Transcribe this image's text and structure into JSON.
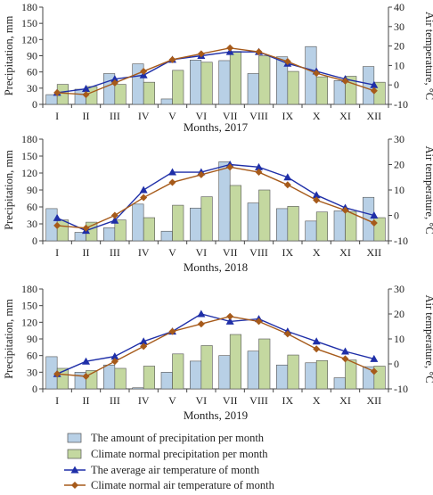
{
  "chart_data": [
    {
      "type": "bar",
      "xlabel": "Months, 2017",
      "ylabel_left": "Precipitation, mm",
      "ylabel_right": "Air temperature, °C",
      "ylim_left": [
        0,
        180
      ],
      "yticks_left": [
        "0",
        "30",
        "60",
        "90",
        "120",
        "150",
        "180"
      ],
      "ylim_right": [
        -10,
        40
      ],
      "yticks_right": [
        "-10",
        "0",
        "10",
        "20",
        "30",
        "40"
      ],
      "categories": [
        "I",
        "II",
        "III",
        "IV",
        "V",
        "VI",
        "VII",
        "VIII",
        "IX",
        "X",
        "XI",
        "XII"
      ],
      "series": [
        {
          "name": "The amount of precipitation per month",
          "kind": "bar",
          "color": "#b8d0e6",
          "values": [
            18,
            28,
            57,
            75,
            10,
            82,
            81,
            57,
            88,
            107,
            44,
            70
          ]
        },
        {
          "name": "Climate normal precipitation per month",
          "kind": "bar",
          "color": "#c4d8a0",
          "values": [
            37,
            33,
            37,
            41,
            63,
            78,
            98,
            90,
            61,
            51,
            52,
            41
          ]
        },
        {
          "name": "The average air temperature of month",
          "kind": "line",
          "color": "#1f2fa8",
          "values": [
            -4,
            -2,
            3,
            5,
            13,
            15,
            17,
            17,
            11,
            7,
            3,
            0
          ]
        },
        {
          "name": "Climate normal air temperature of month",
          "kind": "line",
          "color": "#a65a1a",
          "values": [
            -4,
            -5,
            1,
            7,
            13,
            16,
            19,
            17,
            12,
            6,
            2,
            -3
          ]
        }
      ]
    },
    {
      "type": "bar",
      "xlabel": "Months, 2018",
      "ylabel_left": "Precipitation, mm",
      "ylabel_right": "Air temperature, °C",
      "ylim_left": [
        0,
        180
      ],
      "yticks_left": [
        "0",
        "30",
        "60",
        "90",
        "120",
        "150",
        "180"
      ],
      "ylim_right": [
        -10,
        30
      ],
      "yticks_right": [
        "-10",
        "0",
        "10",
        "20",
        "30"
      ],
      "categories": [
        "I",
        "II",
        "III",
        "IV",
        "V",
        "VI",
        "VII",
        "VIII",
        "IX",
        "X",
        "XI",
        "XII"
      ],
      "series": [
        {
          "name": "The amount of precipitation per month",
          "kind": "bar",
          "color": "#b8d0e6",
          "values": [
            57,
            15,
            23,
            65,
            17,
            58,
            140,
            67,
            57,
            35,
            53,
            77
          ]
        },
        {
          "name": "Climate normal precipitation per month",
          "kind": "bar",
          "color": "#c4d8a0",
          "values": [
            37,
            33,
            37,
            41,
            63,
            78,
            98,
            90,
            61,
            51,
            52,
            41
          ]
        },
        {
          "name": "The average air temperature of month",
          "kind": "line",
          "color": "#1f2fa8",
          "values": [
            -1,
            -6,
            -2,
            10,
            17,
            17,
            20,
            19,
            15,
            8,
            3,
            0
          ]
        },
        {
          "name": "Climate normal air temperature of month",
          "kind": "line",
          "color": "#a65a1a",
          "values": [
            -4,
            -5,
            0,
            7,
            13,
            16,
            19,
            17,
            12,
            6,
            2,
            -3
          ]
        }
      ]
    },
    {
      "type": "bar",
      "xlabel": "Months, 2019",
      "ylabel_left": "Precipitation, mm",
      "ylabel_right": "Air temperature, °C",
      "ylim_left": [
        0,
        180
      ],
      "yticks_left": [
        "0",
        "30",
        "60",
        "90",
        "120",
        "150",
        "180"
      ],
      "ylim_right": [
        -10,
        30
      ],
      "yticks_right": [
        "-10",
        "0",
        "10",
        "20",
        "30"
      ],
      "categories": [
        "I",
        "II",
        "III",
        "IV",
        "V",
        "VI",
        "VII",
        "VIII",
        "IX",
        "X",
        "XI",
        "XII"
      ],
      "series": [
        {
          "name": "The amount of precipitation per month",
          "kind": "bar",
          "color": "#b8d0e6",
          "values": [
            58,
            30,
            43,
            2,
            30,
            50,
            60,
            68,
            43,
            47,
            20,
            40
          ]
        },
        {
          "name": "Climate normal precipitation per month",
          "kind": "bar",
          "color": "#c4d8a0",
          "values": [
            37,
            33,
            37,
            41,
            63,
            78,
            98,
            90,
            61,
            51,
            52,
            41
          ]
        },
        {
          "name": "The average air temperature of month",
          "kind": "line",
          "color": "#1f2fa8",
          "values": [
            -4,
            1,
            3,
            9,
            13,
            20,
            17,
            18,
            13,
            9,
            5,
            2
          ]
        },
        {
          "name": "Climate normal air temperature of month",
          "kind": "line",
          "color": "#a65a1a",
          "values": [
            -4,
            -5,
            1,
            7,
            13,
            16,
            19,
            17,
            12,
            6,
            2,
            -3
          ]
        }
      ]
    }
  ],
  "legend": {
    "items": [
      {
        "label": "The amount of precipitation per month",
        "kind": "bar",
        "color": "#b8d0e6"
      },
      {
        "label": "Climate normal precipitation per month",
        "kind": "bar",
        "color": "#c4d8a0"
      },
      {
        "label": "The average air temperature of month",
        "kind": "line",
        "color": "#1f2fa8",
        "marker": "triangle"
      },
      {
        "label": "Climate normal air temperature of month",
        "kind": "line",
        "color": "#a65a1a",
        "marker": "diamond"
      }
    ]
  }
}
